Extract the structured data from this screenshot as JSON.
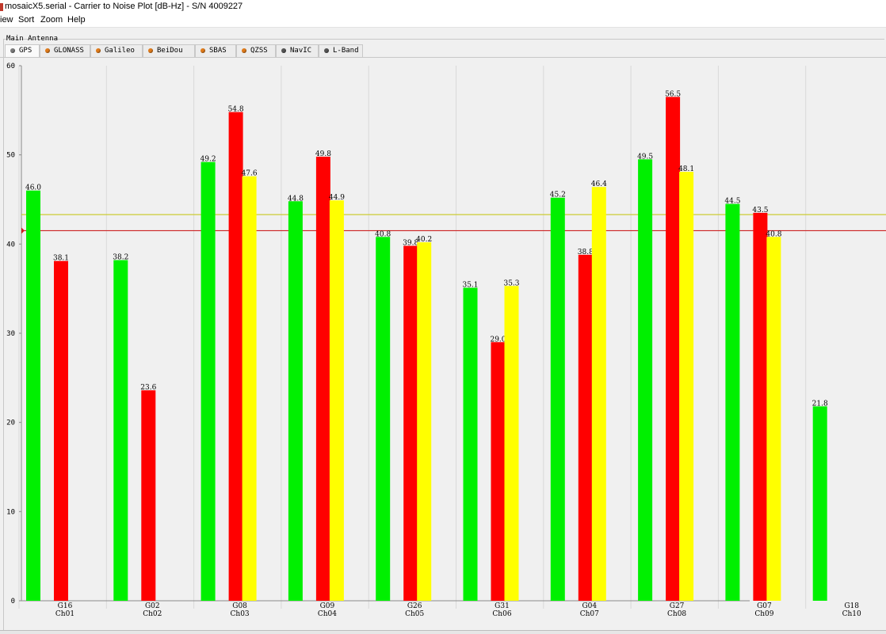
{
  "window": {
    "title": "mosaicX5.serial - Carrier to Noise Plot [dB-Hz] - S/N 4009227"
  },
  "menu": {
    "items": [
      "iew",
      "Sort",
      "Zoom",
      "Help"
    ]
  },
  "group": {
    "label": "Main Antenna"
  },
  "tabs": [
    {
      "label": "GPS",
      "dot_color": "#7a7a7a",
      "active": true
    },
    {
      "label": "GLONASS",
      "dot_color": "#e07b1a",
      "active": false
    },
    {
      "label": "Galileo",
      "dot_color": "#e07b1a",
      "active": false
    },
    {
      "label": "BeiDou",
      "dot_color": "#e07b1a",
      "active": false
    },
    {
      "label": "SBAS",
      "dot_color": "#e07b1a",
      "active": false
    },
    {
      "label": "QZSS",
      "dot_color": "#e07b1a",
      "active": false
    },
    {
      "label": "NavIC",
      "dot_color": "#555555",
      "active": false
    },
    {
      "label": "L-Band",
      "dot_color": "#555555",
      "active": false
    }
  ],
  "colors": {
    "green": "#00f000",
    "red": "#ff0000",
    "yellow": "#ffff00",
    "threshold_red": "#cc2222",
    "threshold_yellow": "#cccc33"
  },
  "chart_data": {
    "type": "bar",
    "ylim": [
      0,
      60
    ],
    "yticks": [
      0,
      10,
      20,
      30,
      40,
      50,
      60
    ],
    "thresholds": [
      43.3,
      41.5
    ],
    "categories": [
      {
        "sat": "G16",
        "ch": "Ch01"
      },
      {
        "sat": "G02",
        "ch": "Ch02"
      },
      {
        "sat": "G08",
        "ch": "Ch03"
      },
      {
        "sat": "G09",
        "ch": "Ch04"
      },
      {
        "sat": "G26",
        "ch": "Ch05"
      },
      {
        "sat": "G31",
        "ch": "Ch06"
      },
      {
        "sat": "G04",
        "ch": "Ch07"
      },
      {
        "sat": "G27",
        "ch": "Ch08"
      },
      {
        "sat": "G07",
        "ch": "Ch09"
      },
      {
        "sat": "G18",
        "ch": "Ch10"
      }
    ],
    "series": [
      {
        "color": "green",
        "values": [
          46.0,
          38.2,
          49.2,
          44.8,
          40.8,
          35.1,
          45.2,
          49.5,
          44.5,
          21.8
        ],
        "labels": [
          "46.0",
          "38.2",
          "49.2",
          "44.8",
          "40.8",
          "35.1",
          "45.2",
          "49.5",
          "44.5",
          "21.8"
        ]
      },
      {
        "color": "red",
        "values": [
          38.1,
          23.6,
          54.8,
          49.8,
          39.8,
          29.0,
          38.8,
          56.5,
          43.5,
          null
        ],
        "labels": [
          "38.1",
          "23.6",
          "54.8",
          "49.8",
          "39.8",
          "29.0",
          "38.8",
          "56.5",
          "43.5",
          null
        ]
      },
      {
        "color": "yellow",
        "values": [
          null,
          null,
          47.6,
          44.9,
          40.2,
          35.3,
          46.4,
          48.1,
          40.8,
          null
        ],
        "labels": [
          null,
          null,
          "47.6",
          "44.9",
          "40.2",
          "35.3",
          "46.4",
          "48.1",
          "40.8",
          null
        ]
      }
    ]
  }
}
